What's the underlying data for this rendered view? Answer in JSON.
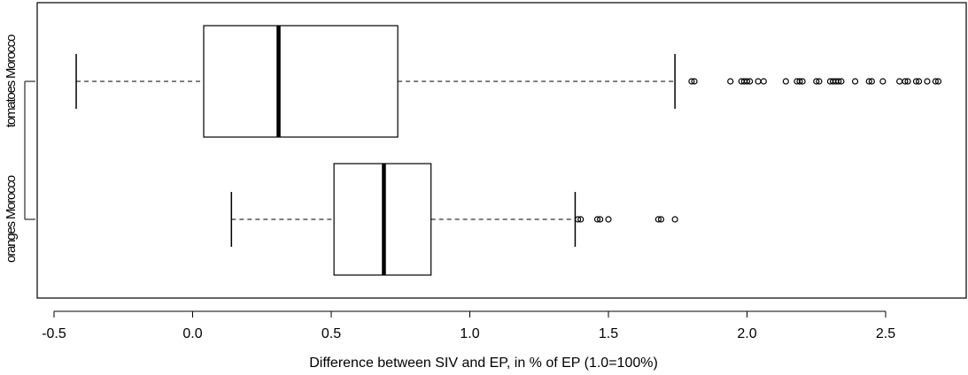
{
  "chart_data": {
    "type": "boxplot",
    "orientation": "horizontal",
    "xlabel": "Difference between SIV and EP, in % of EP (1.0=100%)",
    "ylabel": "",
    "xlim": [
      -0.55,
      2.8
    ],
    "xticks": [
      -0.5,
      0.0,
      0.5,
      1.0,
      1.5,
      2.0,
      2.5
    ],
    "xtick_labels": [
      "-0.5",
      "0.0",
      "0.5",
      "1.0",
      "1.5",
      "2.0",
      "2.5"
    ],
    "grid": false,
    "legend": "none",
    "categories": [
      "oranges Morocco",
      "tomatoes Morocco"
    ],
    "boxes": [
      {
        "label": "oranges Morocco",
        "whisker_low": 0.14,
        "q1": 0.51,
        "median": 0.69,
        "q3": 0.86,
        "whisker_high": 1.38,
        "outliers": [
          1.39,
          1.4,
          1.46,
          1.47,
          1.5,
          1.68,
          1.69,
          1.74
        ]
      },
      {
        "label": "tomatoes Morocco",
        "whisker_low": -0.42,
        "q1": 0.04,
        "median": 0.31,
        "q3": 0.74,
        "whisker_high": 1.74,
        "outliers": [
          1.8,
          1.81,
          1.94,
          1.98,
          1.99,
          2.0,
          2.01,
          2.04,
          2.06,
          2.14,
          2.18,
          2.19,
          2.2,
          2.25,
          2.26,
          2.3,
          2.31,
          2.32,
          2.33,
          2.34,
          2.39,
          2.44,
          2.45,
          2.49,
          2.55,
          2.57,
          2.58,
          2.61,
          2.62,
          2.65,
          2.68,
          2.69
        ]
      }
    ]
  }
}
